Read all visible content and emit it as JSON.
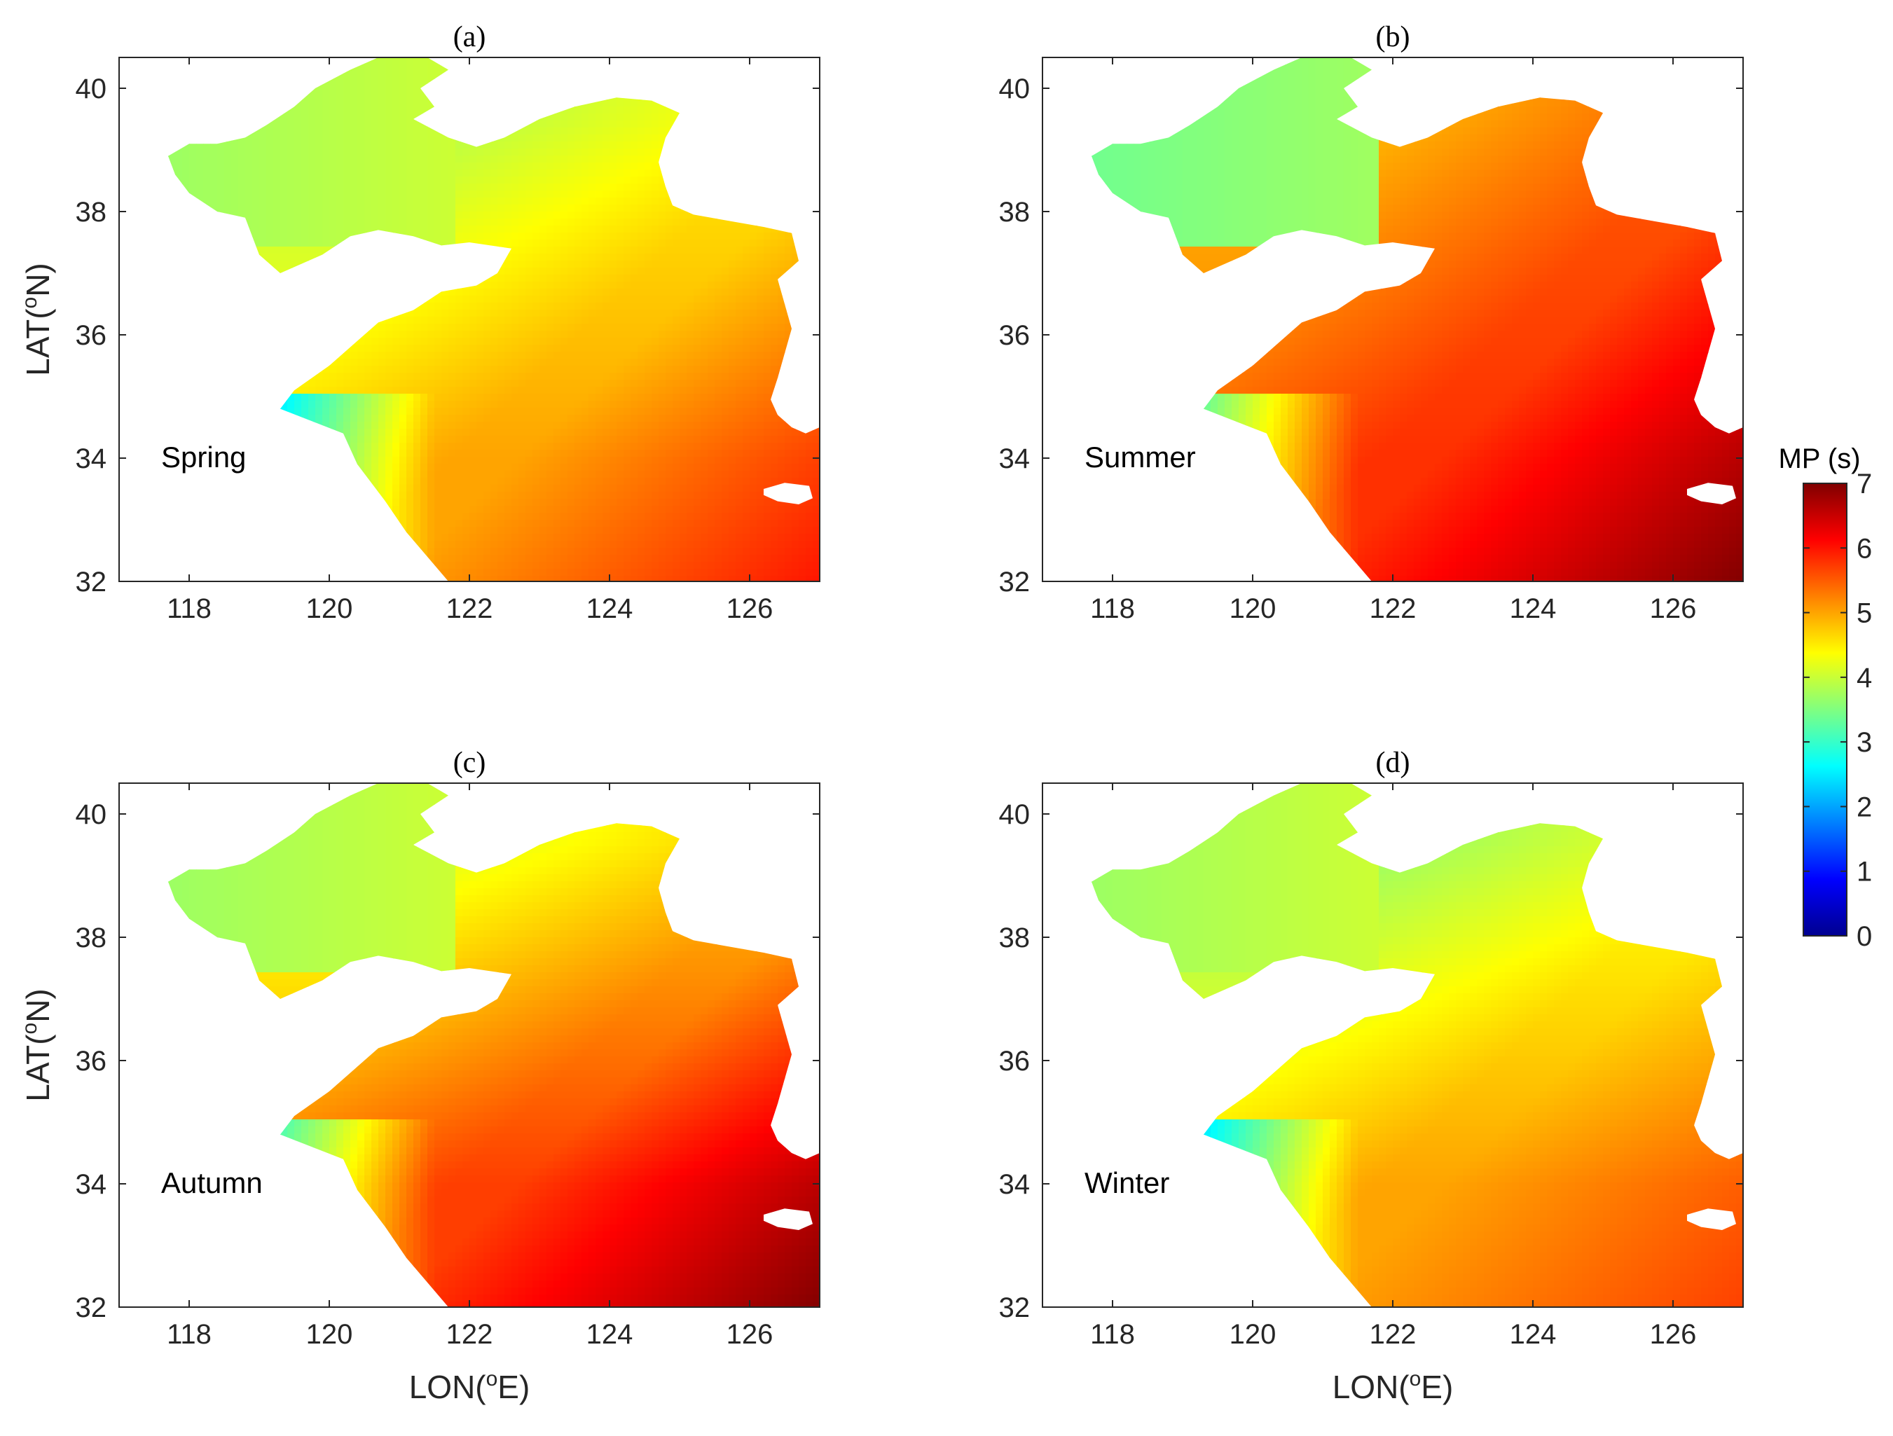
{
  "figure": {
    "panels": [
      {
        "title": "(a)",
        "season": "Spring"
      },
      {
        "title": "(b)",
        "season": "Summer"
      },
      {
        "title": "(c)",
        "season": "Autumn"
      },
      {
        "title": "(d)",
        "season": "Winter"
      }
    ],
    "ylabel_main": "LAT(",
    "ylabel_sup": "o",
    "ylabel_end": "N)",
    "xlabel_main": "LON(",
    "xlabel_sup": "o",
    "xlabel_end": "E)",
    "colorbar": {
      "label": "MP (s)",
      "ticks": [
        "0",
        "1",
        "2",
        "3",
        "4",
        "5",
        "6",
        "7"
      ],
      "colormap": [
        "#00008f",
        "#0000ff",
        "#0080ff",
        "#00ffff",
        "#80ff80",
        "#ffff00",
        "#ff8000",
        "#ff0000",
        "#800000"
      ]
    }
  },
  "chart_data": [
    {
      "type": "heatmap",
      "title": "(a)",
      "annotation": "Spring",
      "xlim": [
        117,
        127
      ],
      "ylim": [
        32,
        40.5
      ],
      "xticks": [
        118,
        120,
        122,
        124,
        126
      ],
      "yticks": [
        32,
        34,
        36,
        38,
        40
      ],
      "color_range": [
        0,
        7
      ],
      "values_s": {
        "bohai_sea": 3.8,
        "yellow_sea_north": 4.5,
        "yellow_sea_central": 5.0,
        "southeast_corner": 6.0
      }
    },
    {
      "type": "heatmap",
      "title": "(b)",
      "annotation": "Summer",
      "xlim": [
        117,
        127
      ],
      "ylim": [
        32,
        40.5
      ],
      "xticks": [
        118,
        120,
        122,
        124,
        126
      ],
      "yticks": [
        32,
        34,
        36,
        38,
        40
      ],
      "color_range": [
        0,
        7
      ],
      "values_s": {
        "bohai_sea": 3.5,
        "yellow_sea_north": 5.5,
        "yellow_sea_central": 5.8,
        "southeast_corner": 7.0
      }
    },
    {
      "type": "heatmap",
      "title": "(c)",
      "annotation": "Autumn",
      "xlim": [
        117,
        127
      ],
      "ylim": [
        32,
        40.5
      ],
      "xticks": [
        118,
        120,
        122,
        124,
        126
      ],
      "yticks": [
        32,
        34,
        36,
        38,
        40
      ],
      "color_range": [
        0,
        7
      ],
      "values_s": {
        "bohai_sea": 3.8,
        "yellow_sea_north": 4.8,
        "yellow_sea_central": 5.7,
        "southeast_corner": 7.0
      }
    },
    {
      "type": "heatmap",
      "title": "(d)",
      "annotation": "Winter",
      "xlim": [
        117,
        127
      ],
      "ylim": [
        32,
        40.5
      ],
      "xticks": [
        118,
        120,
        122,
        124,
        126
      ],
      "yticks": [
        32,
        34,
        36,
        38,
        40
      ],
      "color_range": [
        0,
        7
      ],
      "values_s": {
        "bohai_sea": 3.8,
        "yellow_sea_north": 4.3,
        "yellow_sea_central": 5.0,
        "southeast_corner": 5.7
      }
    }
  ]
}
